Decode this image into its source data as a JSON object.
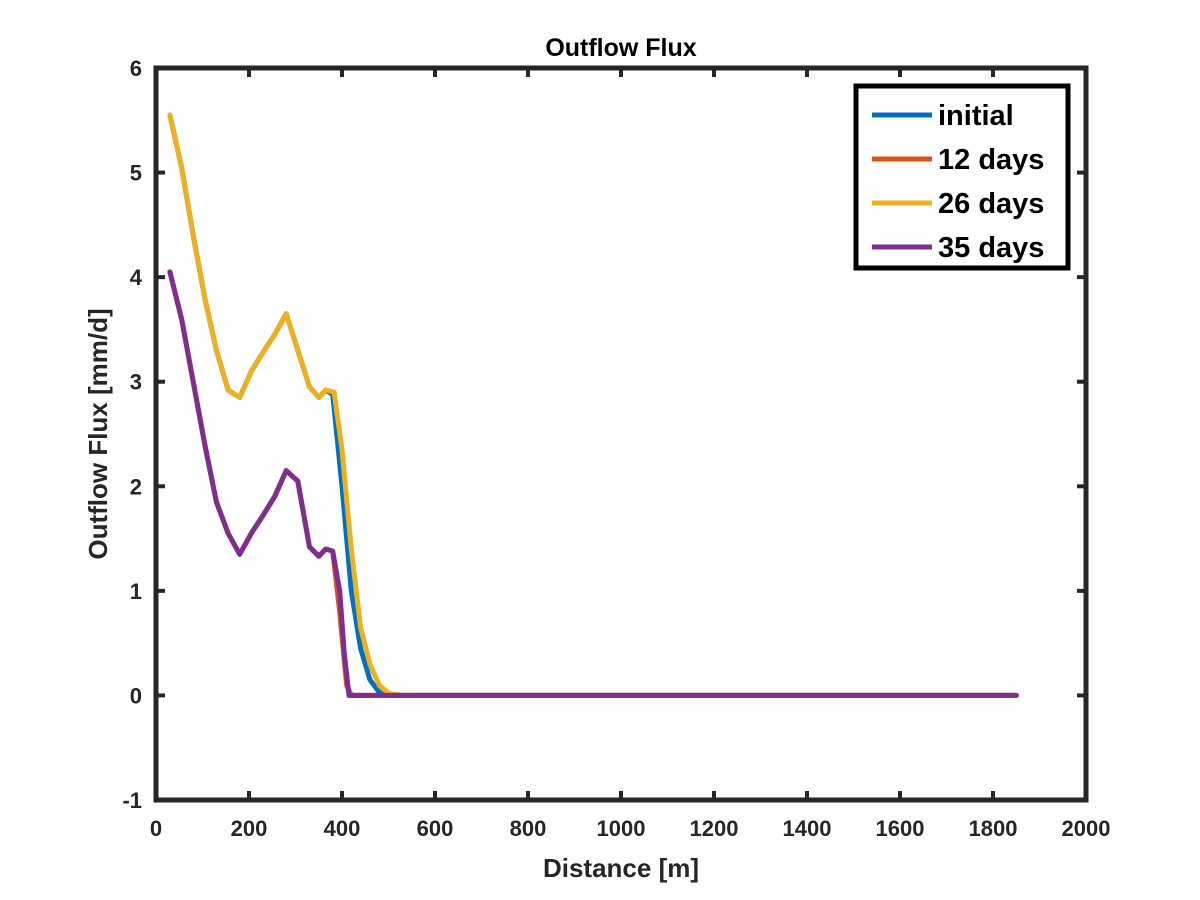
{
  "chart_data": {
    "type": "line",
    "title": "Outflow Flux",
    "xlabel": "Distance [m]",
    "ylabel": "Outflow Flux [mm/d]",
    "xlim": [
      0,
      2000
    ],
    "ylim": [
      -1,
      6
    ],
    "xticks": [
      0,
      200,
      400,
      600,
      800,
      1000,
      1200,
      1400,
      1600,
      1800,
      2000
    ],
    "yticks": [
      -1,
      0,
      1,
      2,
      3,
      4,
      5,
      6
    ],
    "grid": false,
    "legend_position": "top-right",
    "series": [
      {
        "name": "initial",
        "color": "#0072BD",
        "x": [
          30,
          55,
          80,
          105,
          130,
          155,
          180,
          205,
          230,
          255,
          280,
          305,
          330,
          350,
          365,
          380,
          400,
          420,
          440,
          460,
          480,
          500,
          530,
          560,
          1850
        ],
        "y": [
          5.55,
          5.05,
          4.4,
          3.8,
          3.3,
          2.92,
          2.85,
          3.1,
          3.28,
          3.45,
          3.65,
          3.3,
          2.95,
          2.85,
          2.92,
          2.88,
          2.0,
          1.0,
          0.45,
          0.15,
          0.03,
          0.0,
          0.0,
          0.0,
          0.0
        ]
      },
      {
        "name": "12 days",
        "color": "#D95319",
        "x": [
          30,
          55,
          80,
          105,
          130,
          155,
          180,
          205,
          230,
          255,
          280,
          305,
          330,
          350,
          365,
          380,
          395,
          410,
          420,
          440,
          1850
        ],
        "y": [
          4.05,
          3.6,
          3.0,
          2.4,
          1.85,
          1.55,
          1.35,
          1.55,
          1.72,
          1.9,
          2.15,
          2.05,
          1.42,
          1.33,
          1.4,
          1.38,
          0.8,
          0.1,
          0.0,
          0.0,
          0.0
        ]
      },
      {
        "name": "26 days",
        "color": "#EDB120",
        "x": [
          30,
          55,
          80,
          105,
          130,
          155,
          180,
          205,
          230,
          255,
          280,
          305,
          330,
          350,
          365,
          383,
          400,
          420,
          440,
          460,
          480,
          500,
          530,
          560,
          1850
        ],
        "y": [
          5.55,
          5.05,
          4.4,
          3.8,
          3.3,
          2.92,
          2.85,
          3.1,
          3.28,
          3.45,
          3.65,
          3.3,
          2.95,
          2.85,
          2.92,
          2.9,
          2.35,
          1.4,
          0.65,
          0.3,
          0.1,
          0.02,
          0.0,
          0.0,
          0.0
        ]
      },
      {
        "name": "35 days",
        "color": "#7E2F8E",
        "x": [
          30,
          55,
          80,
          105,
          130,
          155,
          180,
          205,
          230,
          255,
          280,
          305,
          330,
          350,
          365,
          380,
          395,
          405,
          415,
          430,
          1850
        ],
        "y": [
          4.05,
          3.6,
          3.0,
          2.4,
          1.85,
          1.55,
          1.35,
          1.55,
          1.72,
          1.9,
          2.15,
          2.05,
          1.42,
          1.33,
          1.4,
          1.38,
          1.0,
          0.4,
          0.0,
          0.0,
          0.0
        ]
      }
    ]
  }
}
